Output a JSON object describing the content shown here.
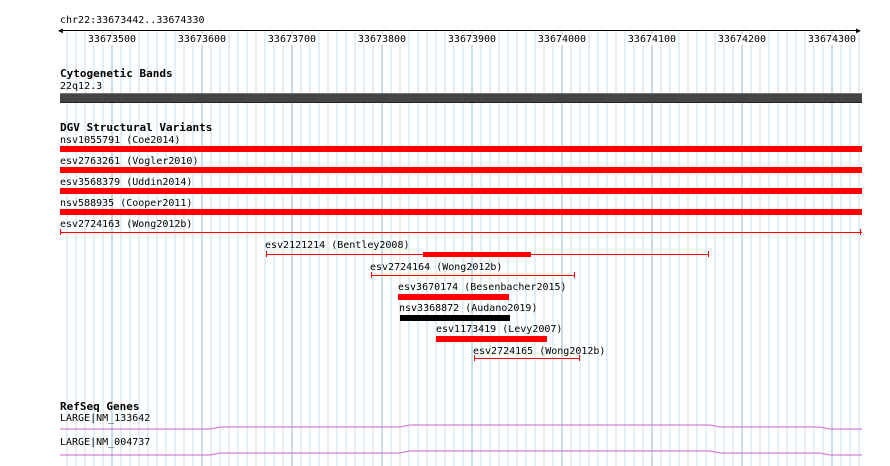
{
  "ruler": {
    "location": "chr22:33673442..33674330",
    "ticks": [
      "33673500",
      "33673600",
      "33673700",
      "33673800",
      "33673900",
      "33674000",
      "33674100",
      "33674200",
      "33674300"
    ]
  },
  "cytoband": {
    "title": "Cytogenetic Bands",
    "band_label": "22q12.3"
  },
  "dgv": {
    "title": "DGV Structural Variants",
    "features": [
      {
        "label": "nsv1055791 (Coe2014)",
        "color": "#ff0000",
        "style": "thick"
      },
      {
        "label": "esv2763261 (Vogler2010)",
        "color": "#ff0000",
        "style": "thick"
      },
      {
        "label": "esv3568379 (Uddin2014)",
        "color": "#ff0000",
        "style": "thick"
      },
      {
        "label": "nsv588935 (Cooper2011)",
        "color": "#ff0000",
        "style": "thick"
      },
      {
        "label": "esv2724163 (Wong2012b)",
        "color": "#ff0000",
        "style": "thin"
      },
      {
        "label": "esv2121214 (Bentley2008)",
        "color": "#ff0000",
        "style": "thin-core"
      },
      {
        "label": "esv2724164 (Wong2012b)",
        "color": "#ff0000",
        "style": "thin"
      },
      {
        "label": "esv3670174 (Besenbacher2015)",
        "color": "#ff0000",
        "style": "thick"
      },
      {
        "label": "nsv3368872 (Audano2019)",
        "color": "#000000",
        "style": "thick"
      },
      {
        "label": "esv1173419 (Levy2007)",
        "color": "#ff0000",
        "style": "thick"
      },
      {
        "label": "esv2724165 (Wong2012b)",
        "color": "#ff0000",
        "style": "thin"
      }
    ]
  },
  "refseq": {
    "title": "RefSeq Genes",
    "genes": [
      {
        "label": "LARGE|NM_133642",
        "color": "#cc66cc"
      },
      {
        "label": "LARGE|NM_004737",
        "color": "#cc66cc"
      }
    ]
  }
}
